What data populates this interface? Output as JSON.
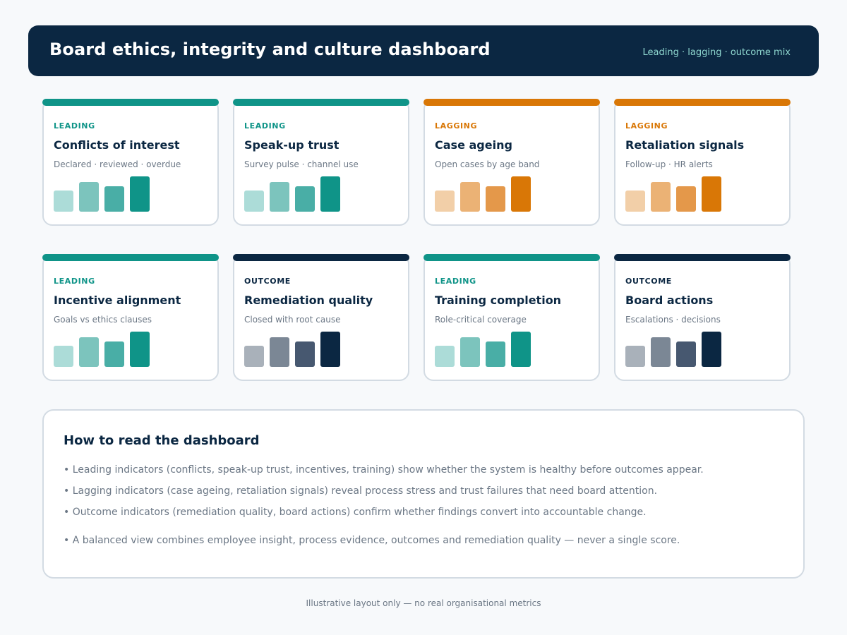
{
  "header": {
    "title": "Board ethics, integrity and culture dashboard",
    "subtitle": "Leading · lagging · outcome mix"
  },
  "colors": {
    "leading": [
      "#acdcd8",
      "#7cc4bd",
      "#49aea6",
      "#0f9488"
    ],
    "lagging": [
      "#f2cfa8",
      "#ebb275",
      "#e4984a",
      "#d97706"
    ],
    "outcome": [
      "#a9b1ba",
      "#7b8795",
      "#475870",
      "#0b2742"
    ],
    "leading_accent": "#0f9488",
    "lagging_accent": "#d97706",
    "outcome_accent": "#0b2742"
  },
  "cards": [
    {
      "tag": "LEADING",
      "kind": "leading",
      "title": "Conflicts of interest",
      "subtitle": "Declared · reviewed · overdue",
      "bars_relative": [
        0.6,
        0.84,
        0.72,
        1.0
      ]
    },
    {
      "tag": "LEADING",
      "kind": "leading",
      "title": "Speak-up trust",
      "subtitle": "Survey pulse · channel use",
      "bars_relative": [
        0.6,
        0.84,
        0.72,
        1.0
      ]
    },
    {
      "tag": "LAGGING",
      "kind": "lagging",
      "title": "Case ageing",
      "subtitle": "Open cases by age band",
      "bars_relative": [
        0.6,
        0.84,
        0.72,
        1.0
      ]
    },
    {
      "tag": "LAGGING",
      "kind": "lagging",
      "title": "Retaliation signals",
      "subtitle": "Follow-up · HR alerts",
      "bars_relative": [
        0.6,
        0.84,
        0.72,
        1.0
      ]
    },
    {
      "tag": "LEADING",
      "kind": "leading",
      "title": "Incentive alignment",
      "subtitle": "Goals vs ethics clauses",
      "bars_relative": [
        0.6,
        0.84,
        0.72,
        1.0
      ]
    },
    {
      "tag": "OUTCOME",
      "kind": "outcome",
      "title": "Remediation quality",
      "subtitle": "Closed with root cause",
      "bars_relative": [
        0.6,
        0.84,
        0.72,
        1.0
      ]
    },
    {
      "tag": "LEADING",
      "kind": "leading",
      "title": "Training completion",
      "subtitle": "Role-critical coverage",
      "bars_relative": [
        0.6,
        0.84,
        0.72,
        1.0
      ]
    },
    {
      "tag": "OUTCOME",
      "kind": "outcome",
      "title": "Board actions",
      "subtitle": "Escalations · decisions",
      "bars_relative": [
        0.6,
        0.84,
        0.72,
        1.0
      ]
    }
  ],
  "info": {
    "title": "How to read the dashboard",
    "lines": [
      "• Leading indicators (conflicts, speak-up trust, incentives, training) show whether the system is healthy before outcomes appear.",
      "• Lagging indicators (case ageing, retaliation signals) reveal process stress and trust failures that need board attention.",
      "• Outcome indicators (remediation quality, board actions) confirm whether findings convert into accountable change.",
      "• A balanced view combines employee insight, process evidence, outcomes and remediation quality — never a single score."
    ]
  },
  "footer": "Illustrative layout only — no real organisational metrics"
}
